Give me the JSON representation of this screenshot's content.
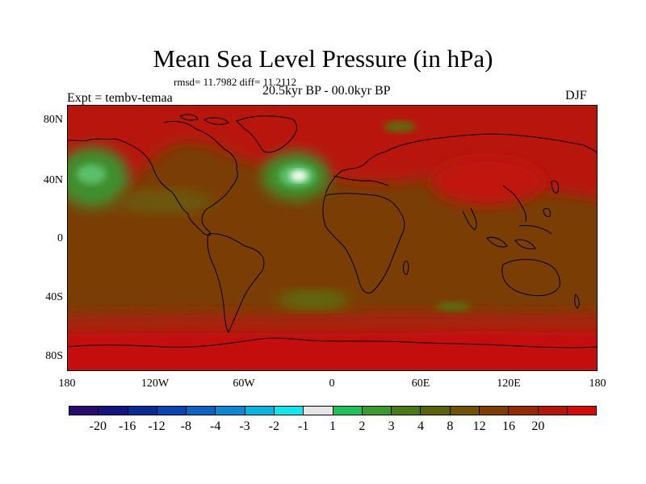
{
  "title": "Mean Sea Level Pressure (in hPa)",
  "stats": "rmsd= 11.7982 diff= 11.2112",
  "period": "20.5kyr BP - 00.0kyr BP",
  "expt": "Expt = tembv-temaa",
  "season": "DJF",
  "yaxis": [
    "80N",
    "40N",
    "0",
    "40S",
    "80S"
  ],
  "xaxis": [
    "180",
    "120W",
    "60W",
    "0",
    "60E",
    "120E",
    "180"
  ],
  "colorbar": {
    "colors": [
      "#2a0a6e",
      "#14137f",
      "#0b2a96",
      "#0a44b0",
      "#0b63c4",
      "#0b88d2",
      "#0ab3e0",
      "#10e6ec",
      "#e6e6e6",
      "#1fc25a",
      "#3a9a2e",
      "#4a7a17",
      "#5a620a",
      "#6f5204",
      "#7e3d04",
      "#962a06",
      "#b31608",
      "#d40a0a"
    ],
    "labels": [
      "-20",
      "-16",
      "-12",
      "-8",
      "-4",
      "-3",
      "-2",
      "-1",
      "1",
      "2",
      "3",
      "4",
      "8",
      "12",
      "16",
      "20"
    ]
  },
  "field": {
    "background": "#7a3e05",
    "north_band": "#b8140c",
    "south_band": "#a8200a",
    "green_low": "#3f8f2e",
    "light_green": "#5bc06a",
    "white_low": "#f4fff4",
    "olive": "#5e6a10"
  }
}
